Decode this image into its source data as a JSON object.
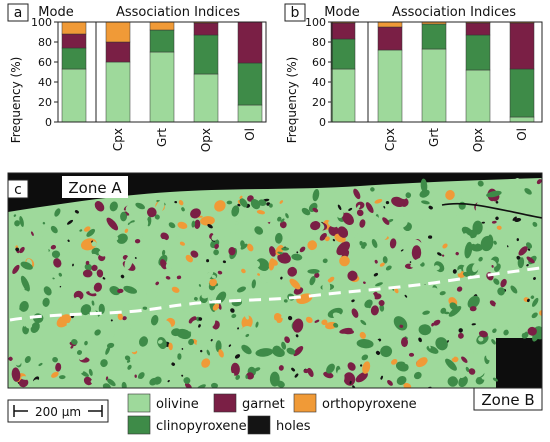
{
  "colors": {
    "olivine": "#9ed99b",
    "garnet": "#7a1f45",
    "orthopyroxene": "#f09a37",
    "clinopyroxene": "#3e8b48",
    "holes": "#141414"
  },
  "chart_data": [
    {
      "type": "bar",
      "panel_label": "a",
      "stacked": true,
      "ylabel": "Frequency (%)",
      "ylim": [
        0,
        100
      ],
      "yticks": [
        0,
        20,
        40,
        60,
        80,
        100
      ],
      "group_headers": {
        "mode": "Mode",
        "indices": "Association Indices"
      },
      "categories": [
        "Mode",
        "Cpx",
        "Grt",
        "Opx",
        "Ol"
      ],
      "x_tick_labels": [
        "",
        "Cpx",
        "Grt",
        "Opx",
        "Ol"
      ],
      "series": [
        {
          "name": "olivine",
          "values": [
            53,
            60,
            70,
            48,
            17
          ]
        },
        {
          "name": "clinopyroxene",
          "values": [
            21,
            0,
            22,
            39,
            42
          ]
        },
        {
          "name": "garnet",
          "values": [
            14,
            20,
            0,
            12,
            41
          ]
        },
        {
          "name": "orthopyroxene",
          "values": [
            12,
            20,
            8,
            1,
            0
          ]
        }
      ]
    },
    {
      "type": "bar",
      "panel_label": "b",
      "stacked": true,
      "ylabel": "Frequency (%)",
      "ylim": [
        0,
        100
      ],
      "yticks": [
        0,
        20,
        40,
        60,
        80,
        100
      ],
      "group_headers": {
        "mode": "Mode",
        "indices": "Association Indices"
      },
      "categories": [
        "Mode",
        "Cpx",
        "Grt",
        "Opx",
        "Ol"
      ],
      "x_tick_labels": [
        "",
        "Cpx",
        "Grt",
        "Opx",
        "Ol"
      ],
      "series": [
        {
          "name": "olivine",
          "values": [
            53,
            72,
            73,
            52,
            5
          ]
        },
        {
          "name": "clinopyroxene",
          "values": [
            30,
            0,
            25,
            35,
            48
          ]
        },
        {
          "name": "garnet",
          "values": [
            16,
            23,
            0,
            12,
            46
          ]
        },
        {
          "name": "orthopyroxene",
          "values": [
            1,
            5,
            2,
            1,
            1
          ]
        }
      ]
    }
  ],
  "map": {
    "panel_label": "c",
    "zone_a_label": "Zone A",
    "zone_b_label": "Zone B",
    "scale_bar_label": "200 µm"
  },
  "legend": {
    "items": [
      {
        "key": "olivine",
        "label": "olivine"
      },
      {
        "key": "garnet",
        "label": "garnet"
      },
      {
        "key": "orthopyroxene",
        "label": "orthopyroxene"
      },
      {
        "key": "clinopyroxene",
        "label": "clinopyroxene"
      },
      {
        "key": "holes",
        "label": "holes"
      }
    ]
  }
}
